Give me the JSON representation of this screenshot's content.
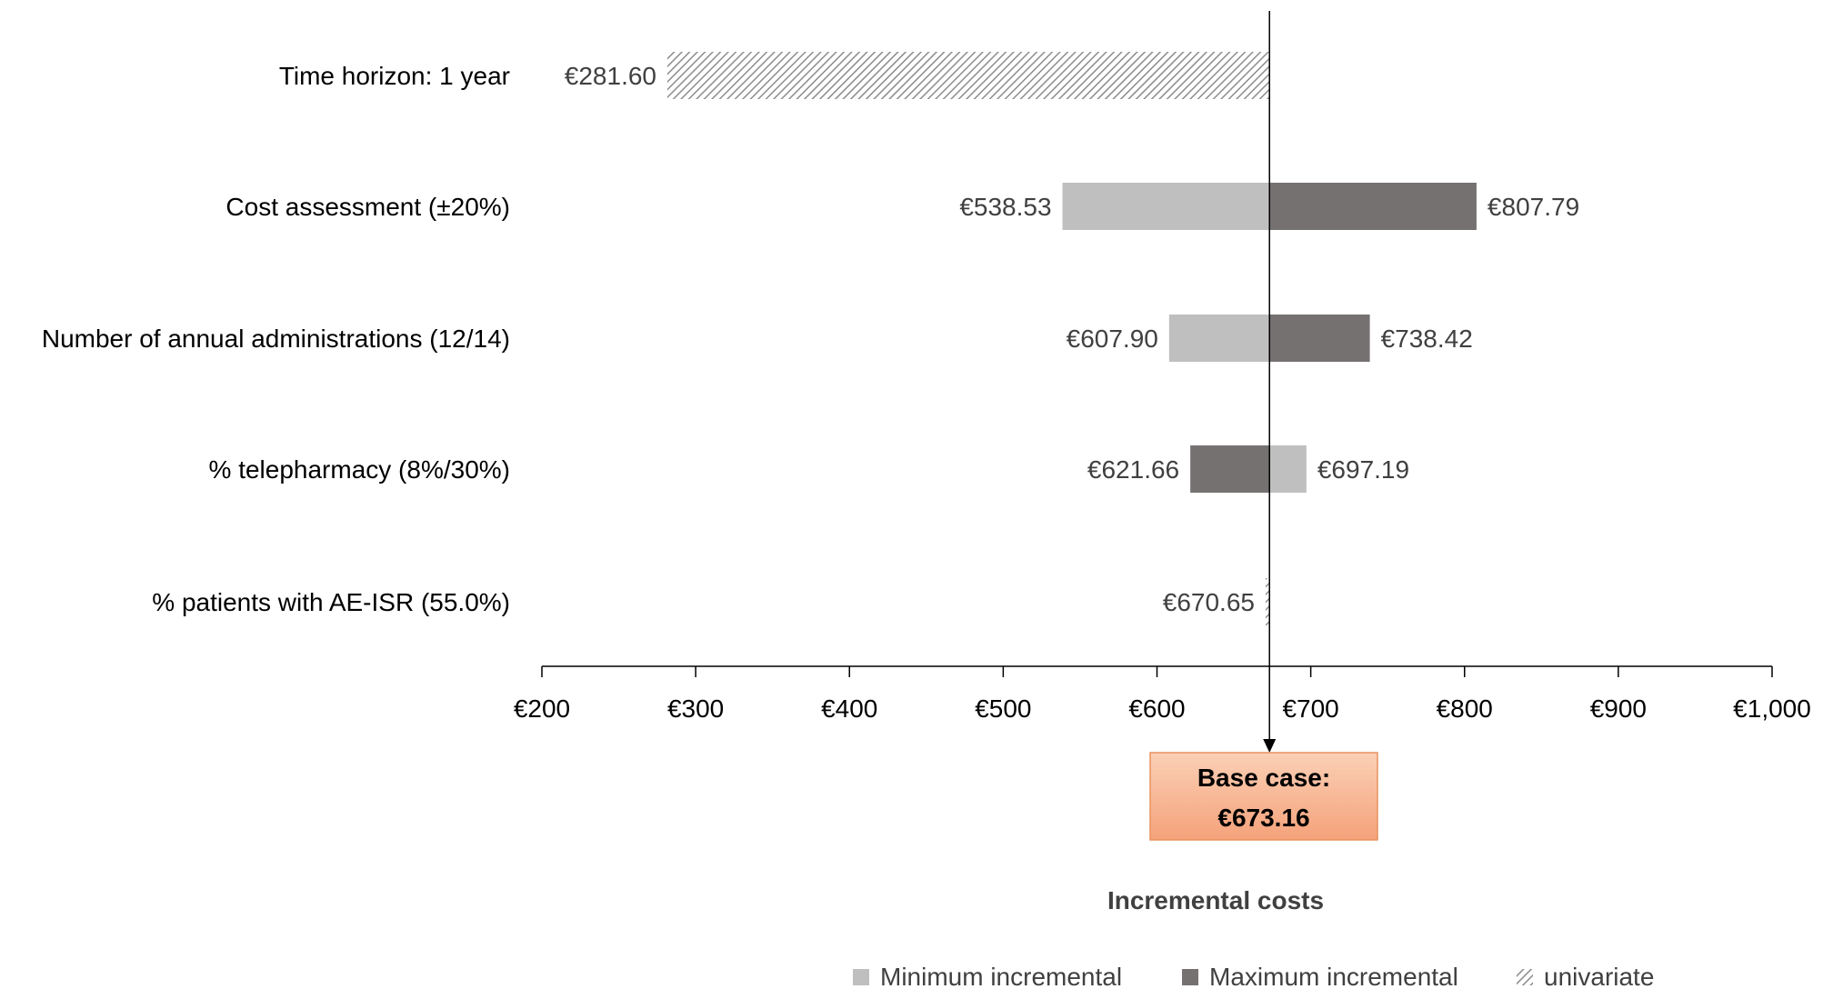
{
  "chart_data": {
    "type": "tornado",
    "base_case": 673.16,
    "base_case_box": {
      "line1": "Base case:",
      "line2": "€673.16"
    },
    "xlabel": "Incremental costs",
    "xlim": [
      200,
      1000
    ],
    "xticks": [
      200,
      300,
      400,
      500,
      600,
      700,
      800,
      900,
      1000
    ],
    "xtick_labels": [
      "€200",
      "€300",
      "€400",
      "€500",
      "€600",
      "€700",
      "€800",
      "€900",
      "€1,000"
    ],
    "rows": [
      {
        "label": "Time horizon: 1 year",
        "bars": [
          {
            "kind": "univariate",
            "value": 281.6,
            "text": "€281.60"
          }
        ]
      },
      {
        "label": "Cost assessment (±20%)",
        "bars": [
          {
            "kind": "minimum",
            "value": 538.53,
            "text": "€538.53"
          },
          {
            "kind": "maximum",
            "value": 807.79,
            "text": "€807.79"
          }
        ]
      },
      {
        "label": "Number of annual administrations (12/14)",
        "bars": [
          {
            "kind": "minimum",
            "value": 607.9,
            "text": "€607.90"
          },
          {
            "kind": "maximum",
            "value": 738.42,
            "text": "€738.42"
          }
        ]
      },
      {
        "label": "% telepharmacy (8%/30%)",
        "bars": [
          {
            "kind": "maximum",
            "value": 621.66,
            "text": "€621.66"
          },
          {
            "kind": "minimum",
            "value": 697.19,
            "text": "€697.19"
          }
        ]
      },
      {
        "label": "% patients with AE-ISR (55.0%)",
        "bars": [
          {
            "kind": "univariate",
            "value": 670.65,
            "text": "€670.65"
          }
        ]
      }
    ],
    "legend": [
      {
        "kind": "minimum",
        "label": "Minimum incremental"
      },
      {
        "kind": "maximum",
        "label": "Maximum incremental"
      },
      {
        "kind": "univariate",
        "label": "univariate"
      }
    ],
    "legend_position": "bottom",
    "grid": false,
    "colors": {
      "minimum": "#bfbfbf",
      "maximum": "#767171",
      "univariate_hatch": "#8c8c8c",
      "base_box_fill_top": "#fbd0b6",
      "base_box_fill_bottom": "#f4a27a",
      "base_box_border": "#e8925f"
    }
  }
}
